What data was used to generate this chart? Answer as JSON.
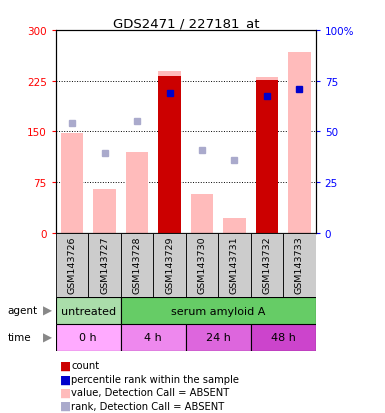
{
  "title": "GDS2471 / 227181_at",
  "samples": [
    "GSM143726",
    "GSM143727",
    "GSM143728",
    "GSM143729",
    "GSM143730",
    "GSM143731",
    "GSM143732",
    "GSM143733"
  ],
  "bar_values_pink": [
    148,
    65,
    120,
    240,
    58,
    22,
    230,
    268
  ],
  "bar_values_red": [
    0,
    0,
    0,
    232,
    0,
    0,
    226,
    0
  ],
  "rank_dots_blue": [
    null,
    null,
    null,
    207,
    null,
    null,
    203,
    213
  ],
  "rank_dots_lightblue": [
    162,
    118,
    165,
    null,
    123,
    108,
    null,
    null
  ],
  "ylim_left": [
    0,
    300
  ],
  "ylim_right": [
    0,
    100
  ],
  "yticks_left": [
    0,
    75,
    150,
    225,
    300
  ],
  "yticks_right": [
    0,
    25,
    50,
    75,
    100
  ],
  "ytick_labels_left": [
    "0",
    "75",
    "150",
    "225",
    "300"
  ],
  "ytick_labels_right": [
    "0",
    "25",
    "50",
    "75",
    "100%"
  ],
  "agent_groups": [
    {
      "label": "untreated",
      "start": 0,
      "end": 2,
      "color": "#aaddaa"
    },
    {
      "label": "serum amyloid A",
      "start": 2,
      "end": 8,
      "color": "#66cc66"
    }
  ],
  "time_groups": [
    {
      "label": "0 h",
      "start": 0,
      "end": 2,
      "color": "#ffaaff"
    },
    {
      "label": "4 h",
      "start": 2,
      "end": 4,
      "color": "#ee88ee"
    },
    {
      "label": "24 h",
      "start": 4,
      "end": 6,
      "color": "#dd66dd"
    },
    {
      "label": "48 h",
      "start": 6,
      "end": 8,
      "color": "#cc44cc"
    }
  ],
  "color_red": "#cc0000",
  "color_blue": "#0000cc",
  "color_pink": "#ffbbbb",
  "color_lightblue": "#aaaacc",
  "color_gray": "#cccccc",
  "legend_items": [
    {
      "color": "#cc0000",
      "label": "count"
    },
    {
      "color": "#0000cc",
      "label": "percentile rank within the sample"
    },
    {
      "color": "#ffbbbb",
      "label": "value, Detection Call = ABSENT"
    },
    {
      "color": "#aaaacc",
      "label": "rank, Detection Call = ABSENT"
    }
  ]
}
